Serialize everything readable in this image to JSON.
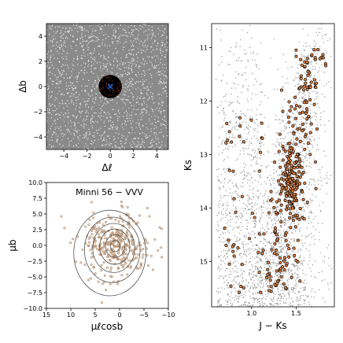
{
  "chart_data": [
    {
      "type": "scatter",
      "panel": "sky position",
      "xlabel": "Δℓ",
      "ylabel": "Δb",
      "xlim": [
        -5.5,
        5.0
      ],
      "ylim": [
        -5.0,
        5.0
      ],
      "xticks": [
        -4,
        -2,
        0,
        2,
        4
      ],
      "yticks": [
        -4,
        -2,
        0,
        2,
        4
      ],
      "xtick_labels": [
        "−4",
        "−2",
        "0",
        "2",
        "4"
      ],
      "ytick_labels": [
        "−4",
        "−2",
        "0",
        "2",
        "4"
      ],
      "series": [
        {
          "role": "field stars",
          "color": "#888888",
          "fills_panel": true
        },
        {
          "role": "selected members",
          "color": "#000000",
          "region": "circle",
          "center": [
            0,
            0
          ],
          "radius": 1.0
        },
        {
          "role": "cluster center",
          "color": "#1f5fd6",
          "marker": "x",
          "x": 0,
          "y": 0
        }
      ]
    },
    {
      "type": "scatter",
      "panel": "proper motion",
      "title": "Minni 56 − VVV",
      "xlabel": "μℓcosb",
      "ylabel": "μb",
      "xlim": [
        15,
        -10
      ],
      "ylim": [
        -10,
        10
      ],
      "xticks": [
        15,
        10,
        5,
        0,
        -5,
        -10
      ],
      "yticks": [
        -10.0,
        -7.5,
        -5.0,
        -2.5,
        0.0,
        2.5,
        5.0,
        7.5,
        10.0
      ],
      "xtick_labels": [
        "15",
        "10",
        "5",
        "0",
        "−5",
        "−10"
      ],
      "ytick_labels": [
        "−10.0",
        "−7.5",
        "−5.0",
        "−2.5",
        "0.0",
        "2.5",
        "5.0",
        "7.5",
        "10.0"
      ],
      "members": {
        "center": [
          0.8,
          -0.2
        ],
        "spread": [
          3.0,
          2.4
        ],
        "count": 320,
        "color": "#8b5a2b"
      },
      "contour_levels": [
        {
          "center": [
            0.9,
            -0.1
          ],
          "rx": 1.0,
          "ry": 0.9
        },
        {
          "center": [
            0.9,
            -0.1
          ],
          "rx": 2.0,
          "ry": 1.8
        },
        {
          "center": [
            1.0,
            -0.2
          ],
          "rx": 3.1,
          "ry": 2.8
        },
        {
          "center": [
            1.2,
            -0.4
          ],
          "rx": 4.3,
          "ry": 3.9
        },
        {
          "center": [
            1.5,
            -0.7
          ],
          "rx": 5.7,
          "ry": 5.2
        },
        {
          "center": [
            2.0,
            -1.2
          ],
          "rx": 7.4,
          "ry": 6.8
        }
      ]
    },
    {
      "type": "scatter",
      "panel": "color-magnitude diagram",
      "xlabel": "J − Ks",
      "ylabel": "Ks",
      "xlim": [
        0.55,
        1.93
      ],
      "ylim": [
        15.85,
        10.55
      ],
      "xticks": [
        1.0,
        1.5
      ],
      "yticks": [
        11,
        12,
        13,
        14,
        15
      ],
      "xtick_labels": [
        "1.0",
        "1.5"
      ],
      "ytick_labels": [
        "11",
        "12",
        "13",
        "14",
        "15"
      ],
      "field": {
        "color": "#888888"
      },
      "members": {
        "count": 380,
        "edge_color": "#111111",
        "face_color": "#e8803a"
      },
      "red_clump": {
        "x": 1.45,
        "y": 13.5
      },
      "giant_branch": [
        [
          1.28,
          15.6
        ],
        [
          1.34,
          14.5
        ],
        [
          1.42,
          13.5
        ],
        [
          1.52,
          12.5
        ],
        [
          1.62,
          11.6
        ],
        [
          1.72,
          10.8
        ]
      ]
    }
  ]
}
